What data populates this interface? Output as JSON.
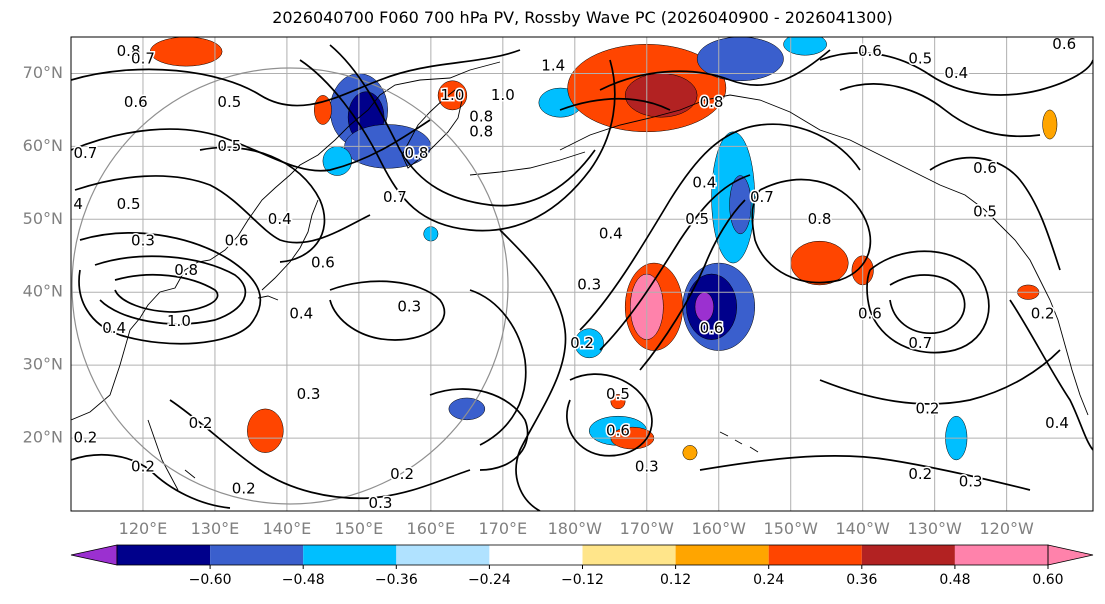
{
  "chart_data": {
    "type": "heatmap",
    "title": "2026040700 F060 700 hPa PV, Rossby Wave PC (2026040900 - 2026041300)",
    "projection": "cylindrical",
    "lon_range": [
      110,
      252
    ],
    "lat_range": [
      10,
      75
    ],
    "lat_ticks": [
      {
        "lat": 70,
        "label": "70°N"
      },
      {
        "lat": 60,
        "label": "60°N"
      },
      {
        "lat": 50,
        "label": "50°N"
      },
      {
        "lat": 40,
        "label": "40°N"
      },
      {
        "lat": 30,
        "label": "30°N"
      },
      {
        "lat": 20,
        "label": "20°N"
      }
    ],
    "lon_ticks": [
      {
        "lon": 120,
        "label": "120°E"
      },
      {
        "lon": 130,
        "label": "130°E"
      },
      {
        "lon": 140,
        "label": "140°E"
      },
      {
        "lon": 150,
        "label": "150°E"
      },
      {
        "lon": 160,
        "label": "160°E"
      },
      {
        "lon": 170,
        "label": "170°E"
      },
      {
        "lon": 180,
        "label": "180°W"
      },
      {
        "lon": 190,
        "label": "170°W"
      },
      {
        "lon": 200,
        "label": "160°W"
      },
      {
        "lon": 210,
        "label": "150°W"
      },
      {
        "lon": 220,
        "label": "140°W"
      },
      {
        "lon": 230,
        "label": "130°W"
      },
      {
        "lon": 240,
        "label": "120°W"
      }
    ],
    "colorbar": {
      "levels": [
        -0.6,
        -0.48,
        -0.36,
        -0.24,
        -0.12,
        0.12,
        0.24,
        0.36,
        0.48,
        0.6
      ],
      "tick_labels": [
        "−0.60",
        "−0.48",
        "−0.36",
        "−0.24",
        "−0.12",
        "0.12",
        "0.24",
        "0.36",
        "0.48",
        "0.60"
      ],
      "colors": [
        "#9b30d0",
        "#00008b",
        "#3a5fcd",
        "#00bfff",
        "#b0e2ff",
        "#ffffff",
        "#ffe58a",
        "#ffa500",
        "#ff4500",
        "#b22222",
        "#ff82ab"
      ],
      "extend": "both"
    },
    "fill_patches": [
      {
        "level": -0.36,
        "lon": 150,
        "lat": 65,
        "rx": 4,
        "ry": 5
      },
      {
        "level": -0.48,
        "lon": 151,
        "lat": 64,
        "rx": 2.5,
        "ry": 3.5
      },
      {
        "level": -0.36,
        "lon": 154,
        "lat": 60,
        "rx": 6,
        "ry": 3
      },
      {
        "level": -0.24,
        "lon": 147,
        "lat": 58,
        "rx": 2,
        "ry": 2
      },
      {
        "level": 0.36,
        "lon": 126,
        "lat": 73,
        "rx": 5,
        "ry": 2
      },
      {
        "level": 0.36,
        "lon": 145,
        "lat": 65,
        "rx": 1.2,
        "ry": 2
      },
      {
        "level": 0.36,
        "lon": 163,
        "lat": 67,
        "rx": 2,
        "ry": 2
      },
      {
        "level": -0.24,
        "lon": 178,
        "lat": 66,
        "rx": 3,
        "ry": 2
      },
      {
        "level": 0.36,
        "lon": 190,
        "lat": 68,
        "rx": 11,
        "ry": 6
      },
      {
        "level": 0.48,
        "lon": 192,
        "lat": 67,
        "rx": 5,
        "ry": 3
      },
      {
        "level": -0.36,
        "lon": 203,
        "lat": 72,
        "rx": 6,
        "ry": 3
      },
      {
        "level": -0.24,
        "lon": 212,
        "lat": 74,
        "rx": 3,
        "ry": 1.5
      },
      {
        "level": -0.24,
        "lon": 202,
        "lat": 53,
        "rx": 3,
        "ry": 9
      },
      {
        "level": -0.36,
        "lon": 203,
        "lat": 52,
        "rx": 1.5,
        "ry": 4
      },
      {
        "level": 0.36,
        "lon": 191,
        "lat": 38,
        "rx": 4,
        "ry": 6
      },
      {
        "level": 0.6,
        "lon": 190,
        "lat": 38,
        "rx": 2.3,
        "ry": 4.5
      },
      {
        "level": -0.36,
        "lon": 200,
        "lat": 38,
        "rx": 5,
        "ry": 6
      },
      {
        "level": -0.48,
        "lon": 199,
        "lat": 38,
        "rx": 3.5,
        "ry": 4.5
      },
      {
        "level": -0.6,
        "lon": 198,
        "lat": 38,
        "rx": 1.3,
        "ry": 2
      },
      {
        "level": -0.24,
        "lon": 182,
        "lat": 33,
        "rx": 2,
        "ry": 2
      },
      {
        "level": -0.24,
        "lon": 186,
        "lat": 21,
        "rx": 4,
        "ry": 2
      },
      {
        "level": 0.36,
        "lon": 188,
        "lat": 20,
        "rx": 3,
        "ry": 1.5
      },
      {
        "level": 0.36,
        "lon": 214,
        "lat": 44,
        "rx": 4,
        "ry": 3
      },
      {
        "level": 0.36,
        "lon": 220,
        "lat": 43,
        "rx": 1.5,
        "ry": 2
      },
      {
        "level": 0.36,
        "lon": 137,
        "lat": 21,
        "rx": 2.5,
        "ry": 3
      },
      {
        "level": 0.36,
        "lon": 186,
        "lat": 25,
        "rx": 1,
        "ry": 1
      },
      {
        "level": 0.24,
        "lon": 196,
        "lat": 18,
        "rx": 1,
        "ry": 1
      },
      {
        "level": -0.36,
        "lon": 165,
        "lat": 24,
        "rx": 2.5,
        "ry": 1.5
      },
      {
        "level": -0.24,
        "lon": 233,
        "lat": 20,
        "rx": 1.5,
        "ry": 3
      },
      {
        "level": 0.36,
        "lon": 243,
        "lat": 40,
        "rx": 1.5,
        "ry": 1
      },
      {
        "level": 0.24,
        "lon": 246,
        "lat": 63,
        "rx": 1,
        "ry": 2
      },
      {
        "level": -0.24,
        "lon": 160,
        "lat": 48,
        "rx": 1,
        "ry": 1
      }
    ],
    "contour_labels": [
      {
        "text": "0.8",
        "lon": 118,
        "lat": 73
      },
      {
        "text": "0.7",
        "lon": 120,
        "lat": 72
      },
      {
        "text": "0.6",
        "lon": 119,
        "lat": 66
      },
      {
        "text": "0.5",
        "lon": 132,
        "lat": 66
      },
      {
        "text": "0.7",
        "lon": 112,
        "lat": 59
      },
      {
        "text": "0.5",
        "lon": 132,
        "lat": 60
      },
      {
        "text": "0.5",
        "lon": 118,
        "lat": 52
      },
      {
        "text": "0.4",
        "lon": 139,
        "lat": 50
      },
      {
        "text": "0.3",
        "lon": 120,
        "lat": 47
      },
      {
        "text": "0.6",
        "lon": 133,
        "lat": 47
      },
      {
        "text": "0.8",
        "lon": 126,
        "lat": 43
      },
      {
        "text": "1.0",
        "lon": 125,
        "lat": 36
      },
      {
        "text": "0.4",
        "lon": 116,
        "lat": 35
      },
      {
        "text": "0.4",
        "lon": 142,
        "lat": 37
      },
      {
        "text": "0.6",
        "lon": 145,
        "lat": 44
      },
      {
        "text": "0.7",
        "lon": 155,
        "lat": 53
      },
      {
        "text": "0.8",
        "lon": 158,
        "lat": 59
      },
      {
        "text": "0.8",
        "lon": 167,
        "lat": 62
      },
      {
        "text": "1.0",
        "lon": 163,
        "lat": 67
      },
      {
        "text": "0.3",
        "lon": 157,
        "lat": 38
      },
      {
        "text": "0.3",
        "lon": 143,
        "lat": 26
      },
      {
        "text": "0.2",
        "lon": 128,
        "lat": 22
      },
      {
        "text": "0.2",
        "lon": 112,
        "lat": 20
      },
      {
        "text": "0.2",
        "lon": 120,
        "lat": 16
      },
      {
        "text": "0.2",
        "lon": 134,
        "lat": 13
      },
      {
        "text": "0.3",
        "lon": 153,
        "lat": 11
      },
      {
        "text": "0.2",
        "lon": 156,
        "lat": 15
      },
      {
        "text": "0.2",
        "lon": 181,
        "lat": 33
      },
      {
        "text": "0.3",
        "lon": 182,
        "lat": 41
      },
      {
        "text": "0.4",
        "lon": 185,
        "lat": 48
      },
      {
        "text": "0.5",
        "lon": 197,
        "lat": 50
      },
      {
        "text": "0.4",
        "lon": 198,
        "lat": 55
      },
      {
        "text": "0.7",
        "lon": 206,
        "lat": 53
      },
      {
        "text": "0.6",
        "lon": 199,
        "lat": 35
      },
      {
        "text": "0.5",
        "lon": 186,
        "lat": 26
      },
      {
        "text": "0.6",
        "lon": 186,
        "lat": 21
      },
      {
        "text": "0.3",
        "lon": 190,
        "lat": 16
      },
      {
        "text": "0.8",
        "lon": 214,
        "lat": 50
      },
      {
        "text": "0.6",
        "lon": 221,
        "lat": 37
      },
      {
        "text": "0.7",
        "lon": 228,
        "lat": 33
      },
      {
        "text": "0.2",
        "lon": 229,
        "lat": 24
      },
      {
        "text": "0.2",
        "lon": 228,
        "lat": 15
      },
      {
        "text": "0.3",
        "lon": 235,
        "lat": 14
      },
      {
        "text": "1.4",
        "lon": 177,
        "lat": 71
      },
      {
        "text": "1.0",
        "lon": 170,
        "lat": 67
      },
      {
        "text": "0.8",
        "lon": 167,
        "lat": 64
      },
      {
        "text": "0.8",
        "lon": 199,
        "lat": 66
      },
      {
        "text": "0.6",
        "lon": 221,
        "lat": 73
      },
      {
        "text": "0.5",
        "lon": 228,
        "lat": 72
      },
      {
        "text": "0.4",
        "lon": 233,
        "lat": 70
      },
      {
        "text": "0.6",
        "lon": 237,
        "lat": 57
      },
      {
        "text": "0.5",
        "lon": 237,
        "lat": 51
      },
      {
        "text": "0.2",
        "lon": 245,
        "lat": 37
      },
      {
        "text": "0.4",
        "lon": 247,
        "lat": 22
      },
      {
        "text": "4",
        "lon": 111,
        "lat": 52
      },
      {
        "text": "0.6",
        "lon": 248,
        "lat": 74
      }
    ]
  }
}
